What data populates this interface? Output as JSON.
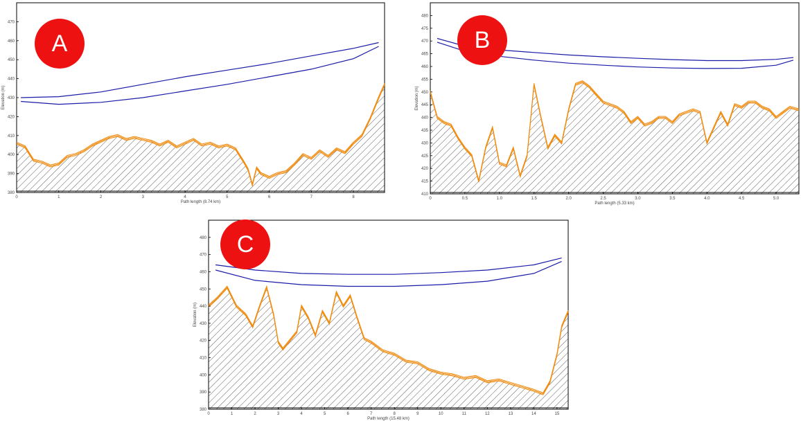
{
  "chart_data": [
    {
      "type": "line",
      "badge": "A",
      "xlabel": "Path length (8.74 km)",
      "ylabel": "Elevation (m)",
      "xlim": [
        0,
        8.74
      ],
      "ylim": [
        380,
        480
      ],
      "xticks": [
        "0",
        "1",
        "2",
        "3",
        "4",
        "5",
        "6",
        "7",
        "8"
      ],
      "yticks": [
        "380",
        "390",
        "400",
        "410",
        "420",
        "430",
        "440",
        "450",
        "460",
        "470"
      ],
      "fresnel_upper": {
        "x": [
          0.1,
          1.0,
          2.0,
          3.0,
          4.0,
          5.0,
          6.0,
          7.0,
          8.0,
          8.6
        ],
        "y": [
          430,
          430.5,
          433,
          437,
          441,
          444.5,
          448,
          452,
          456,
          459
        ]
      },
      "fresnel_lower": {
        "x": [
          0.1,
          1.0,
          2.0,
          3.0,
          4.0,
          5.0,
          6.0,
          7.0,
          8.0,
          8.6
        ],
        "y": [
          428,
          426.5,
          427.5,
          430,
          433.5,
          437,
          441,
          445,
          450.5,
          457
        ]
      },
      "terrain": {
        "x": [
          0,
          0.2,
          0.4,
          0.6,
          0.8,
          1.0,
          1.2,
          1.4,
          1.6,
          1.8,
          2.0,
          2.2,
          2.4,
          2.6,
          2.8,
          3.0,
          3.2,
          3.4,
          3.6,
          3.8,
          4.0,
          4.2,
          4.4,
          4.6,
          4.8,
          5.0,
          5.2,
          5.4,
          5.5,
          5.6,
          5.7,
          5.8,
          6.0,
          6.2,
          6.4,
          6.6,
          6.8,
          7.0,
          7.2,
          7.4,
          7.6,
          7.8,
          8.0,
          8.2,
          8.4,
          8.6,
          8.74
        ],
        "y": [
          406,
          404,
          397,
          396,
          394,
          395,
          399,
          400,
          402,
          405,
          407,
          409,
          410,
          408,
          409,
          408,
          407,
          405,
          407,
          404,
          406,
          408,
          405,
          406,
          404,
          405,
          403,
          396,
          392,
          384,
          393,
          390,
          388,
          390,
          391,
          395,
          400,
          398,
          402,
          399,
          403,
          401,
          406,
          410,
          419,
          430,
          437
        ]
      }
    },
    {
      "type": "line",
      "badge": "B",
      "xlabel": "Path length (5.33 km)",
      "ylabel": "Elevation (m)",
      "xlim": [
        0,
        5.33
      ],
      "ylim": [
        410,
        485
      ],
      "xticks": [
        "0",
        "0.5",
        "1.0",
        "1.5",
        "2.0",
        "2.5",
        "3.0",
        "3.5",
        "4.0",
        "4.5",
        "5.0"
      ],
      "yticks": [
        "410",
        "415",
        "420",
        "425",
        "430",
        "435",
        "440",
        "445",
        "450",
        "455",
        "460",
        "465",
        "470",
        "475",
        "480"
      ],
      "fresnel_upper": {
        "x": [
          0.1,
          0.5,
          1.0,
          1.5,
          2.0,
          2.5,
          3.0,
          3.5,
          4.0,
          4.5,
          5.0,
          5.25
        ],
        "y": [
          471,
          468,
          466.5,
          465.5,
          464.5,
          463.8,
          463.2,
          462.7,
          462.3,
          462.3,
          462.8,
          463.5
        ]
      },
      "fresnel_lower": {
        "x": [
          0.1,
          0.5,
          1.0,
          1.5,
          2.0,
          2.5,
          3.0,
          3.5,
          4.0,
          4.5,
          5.0,
          5.25
        ],
        "y": [
          469.5,
          466,
          464,
          462.5,
          461.3,
          460.5,
          459.8,
          459.4,
          459.2,
          459.3,
          460.5,
          462.5
        ]
      },
      "terrain": {
        "x": [
          0,
          0.1,
          0.2,
          0.3,
          0.4,
          0.5,
          0.6,
          0.7,
          0.8,
          0.9,
          1.0,
          1.1,
          1.2,
          1.3,
          1.4,
          1.5,
          1.6,
          1.7,
          1.8,
          1.9,
          2.0,
          2.1,
          2.2,
          2.3,
          2.4,
          2.5,
          2.6,
          2.7,
          2.8,
          2.9,
          3.0,
          3.1,
          3.2,
          3.3,
          3.4,
          3.5,
          3.6,
          3.7,
          3.8,
          3.9,
          4.0,
          4.1,
          4.2,
          4.3,
          4.4,
          4.5,
          4.6,
          4.7,
          4.8,
          4.9,
          5.0,
          5.1,
          5.2,
          5.33
        ],
        "y": [
          450,
          440,
          438,
          437,
          432,
          428,
          425,
          415,
          428,
          436,
          422,
          421,
          428,
          417,
          425,
          453,
          440,
          428,
          433,
          430,
          443,
          453,
          454,
          452,
          449,
          446,
          445,
          444,
          442,
          438,
          440,
          437,
          438,
          440,
          440,
          438,
          441,
          442,
          443,
          442,
          430,
          436,
          442,
          437,
          445,
          444,
          446,
          446,
          444,
          443,
          440,
          442,
          444,
          443
        ]
      }
    },
    {
      "type": "line",
      "badge": "C",
      "xlabel": "Path length (15.48 km)",
      "ylabel": "Elevation (m)",
      "xlim": [
        0,
        15.48
      ],
      "ylim": [
        380,
        490
      ],
      "xticks": [
        "0",
        "1",
        "2",
        "3",
        "4",
        "5",
        "6",
        "7",
        "8",
        "9",
        "10",
        "11",
        "12",
        "13",
        "14",
        "15"
      ],
      "yticks": [
        "380",
        "390",
        "400",
        "410",
        "420",
        "430",
        "440",
        "450",
        "460",
        "470",
        "480"
      ],
      "fresnel_upper": {
        "x": [
          0.3,
          2.0,
          4.0,
          6.0,
          8.0,
          10.0,
          12.0,
          14.0,
          15.2
        ],
        "y": [
          464,
          461,
          459,
          458.5,
          458.5,
          459.5,
          461,
          464,
          468
        ]
      },
      "fresnel_lower": {
        "x": [
          0.3,
          2.0,
          4.0,
          6.0,
          8.0,
          10.0,
          12.0,
          14.0,
          15.2
        ],
        "y": [
          461,
          455,
          452.5,
          451.5,
          451.5,
          452.5,
          454.5,
          459,
          466
        ]
      },
      "terrain": {
        "x": [
          0,
          0.4,
          0.8,
          1.2,
          1.6,
          1.9,
          2.2,
          2.5,
          2.8,
          3.0,
          3.2,
          3.5,
          3.8,
          4.0,
          4.3,
          4.6,
          4.9,
          5.2,
          5.5,
          5.8,
          6.1,
          6.4,
          6.7,
          7.0,
          7.5,
          8.0,
          8.5,
          9.0,
          9.5,
          10.0,
          10.5,
          11.0,
          11.5,
          12.0,
          12.5,
          13.0,
          13.5,
          14.0,
          14.4,
          14.7,
          15.0,
          15.2,
          15.48
        ],
        "y": [
          440,
          445,
          451,
          440,
          435,
          428,
          440,
          451,
          435,
          419,
          415,
          420,
          425,
          440,
          433,
          423,
          437,
          430,
          448,
          440,
          446,
          433,
          421,
          419,
          414,
          412,
          408,
          407,
          403,
          401,
          400,
          398,
          399,
          396,
          397,
          395,
          393,
          391,
          389,
          396,
          412,
          428,
          437
        ]
      }
    }
  ]
}
